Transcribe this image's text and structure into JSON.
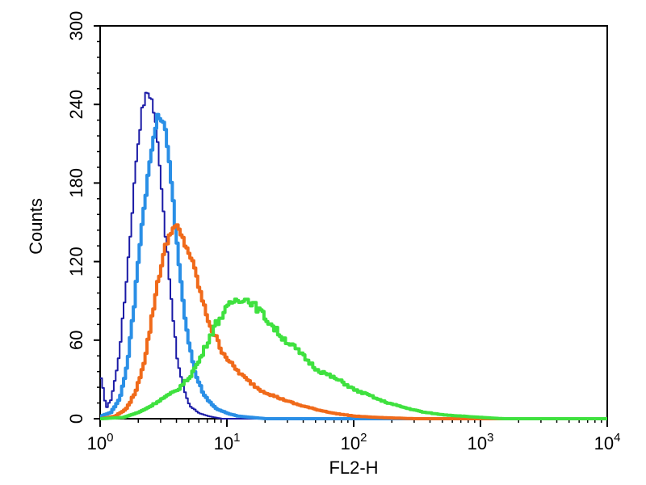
{
  "chart_data": {
    "type": "line",
    "title": "",
    "xlabel": "FL2-H",
    "ylabel": "Counts",
    "xscale": "log",
    "xlim": [
      1,
      10000
    ],
    "ylim": [
      0,
      300
    ],
    "x_ticks": [
      {
        "base": "10",
        "exp": "0",
        "value": 1
      },
      {
        "base": "10",
        "exp": "1",
        "value": 10
      },
      {
        "base": "10",
        "exp": "2",
        "value": 100
      },
      {
        "base": "10",
        "exp": "3",
        "value": 1000
      },
      {
        "base": "10",
        "exp": "4",
        "value": 10000
      }
    ],
    "y_ticks": [
      "0",
      "60",
      "120",
      "180",
      "240",
      "300"
    ],
    "grid": false,
    "legend": "none",
    "series": [
      {
        "color": "#1a1aa6",
        "stroke": 2,
        "points": [
          [
            1,
            30
          ],
          [
            1.05,
            20
          ],
          [
            1.1,
            8
          ],
          [
            1.2,
            15
          ],
          [
            1.35,
            40
          ],
          [
            1.5,
            80
          ],
          [
            1.7,
            140
          ],
          [
            1.9,
            200
          ],
          [
            2.1,
            235
          ],
          [
            2.3,
            250
          ],
          [
            2.5,
            245
          ],
          [
            2.7,
            225
          ],
          [
            2.9,
            195
          ],
          [
            3.1,
            160
          ],
          [
            3.4,
            115
          ],
          [
            3.7,
            75
          ],
          [
            4.0,
            45
          ],
          [
            4.5,
            22
          ],
          [
            5.0,
            10
          ],
          [
            6.0,
            4
          ],
          [
            7.0,
            2
          ],
          [
            9.0,
            0
          ],
          [
            15,
            0
          ],
          [
            10000,
            0
          ]
        ]
      },
      {
        "color": "#2a8fe6",
        "stroke": 4,
        "points": [
          [
            1,
            2
          ],
          [
            1.2,
            5
          ],
          [
            1.4,
            15
          ],
          [
            1.6,
            40
          ],
          [
            1.8,
            80
          ],
          [
            2.0,
            130
          ],
          [
            2.3,
            180
          ],
          [
            2.6,
            215
          ],
          [
            2.8,
            230
          ],
          [
            3.0,
            230
          ],
          [
            3.3,
            215
          ],
          [
            3.6,
            180
          ],
          [
            3.9,
            140
          ],
          [
            4.3,
            100
          ],
          [
            4.8,
            65
          ],
          [
            5.5,
            35
          ],
          [
            6.5,
            18
          ],
          [
            8.0,
            8
          ],
          [
            10,
            4
          ],
          [
            12,
            2
          ],
          [
            20,
            0
          ],
          [
            10000,
            0
          ]
        ]
      },
      {
        "color": "#f06a1a",
        "stroke": 4,
        "points": [
          [
            1,
            0
          ],
          [
            1.3,
            2
          ],
          [
            1.6,
            8
          ],
          [
            1.9,
            22
          ],
          [
            2.2,
            45
          ],
          [
            2.5,
            75
          ],
          [
            2.8,
            105
          ],
          [
            3.2,
            130
          ],
          [
            3.6,
            145
          ],
          [
            4.0,
            146
          ],
          [
            4.5,
            135
          ],
          [
            5.0,
            126
          ],
          [
            5.6,
            110
          ],
          [
            6.5,
            85
          ],
          [
            7.5,
            68
          ],
          [
            9,
            52
          ],
          [
            11,
            40
          ],
          [
            14,
            30
          ],
          [
            18,
            22
          ],
          [
            25,
            16
          ],
          [
            35,
            11
          ],
          [
            50,
            7
          ],
          [
            70,
            4
          ],
          [
            100,
            2
          ],
          [
            150,
            1
          ],
          [
            300,
            0
          ],
          [
            10000,
            0
          ]
        ]
      },
      {
        "color": "#3fe13f",
        "stroke": 4,
        "points": [
          [
            1,
            0
          ],
          [
            1.5,
            1
          ],
          [
            2,
            5
          ],
          [
            2.5,
            10
          ],
          [
            3,
            15
          ],
          [
            4,
            22
          ],
          [
            5,
            32
          ],
          [
            6,
            45
          ],
          [
            7,
            60
          ],
          [
            8,
            72
          ],
          [
            9.5,
            82
          ],
          [
            11,
            90
          ],
          [
            13,
            92
          ],
          [
            15,
            90
          ],
          [
            18,
            82
          ],
          [
            22,
            72
          ],
          [
            27,
            62
          ],
          [
            33,
            55
          ],
          [
            40,
            47
          ],
          [
            50,
            38
          ],
          [
            60,
            34
          ],
          [
            80,
            28
          ],
          [
            100,
            22
          ],
          [
            130,
            18
          ],
          [
            160,
            14
          ],
          [
            200,
            11
          ],
          [
            260,
            8
          ],
          [
            350,
            5
          ],
          [
            500,
            3
          ],
          [
            700,
            2
          ],
          [
            1000,
            1
          ],
          [
            1500,
            0
          ],
          [
            10000,
            0
          ]
        ]
      }
    ]
  }
}
